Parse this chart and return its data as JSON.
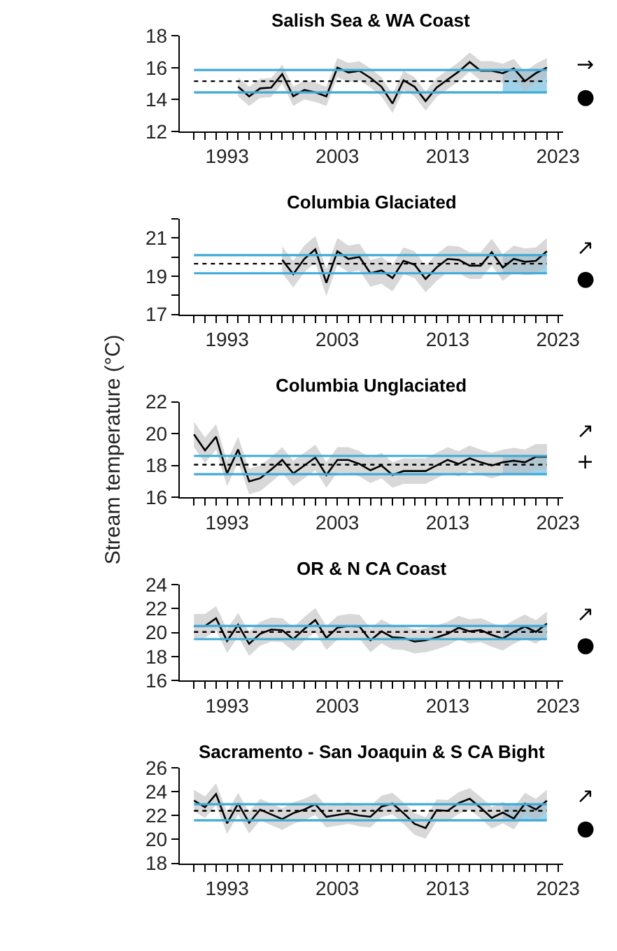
{
  "chart_data": [
    {
      "type": "line",
      "title": "Salish Sea & WA Coast",
      "annotations": [
        "→",
        "●"
      ],
      "x": [
        1994,
        1995,
        1996,
        1997,
        1998,
        1999,
        2000,
        2001,
        2002,
        2003,
        2004,
        2005,
        2006,
        2007,
        2008,
        2009,
        2010,
        2011,
        2012,
        2013,
        2014,
        2015,
        2016,
        2017,
        2018,
        2019,
        2020,
        2021,
        2022
      ],
      "series": [
        {
          "color": "#000000",
          "values": [
            14.8,
            14.2,
            14.7,
            14.75,
            15.6,
            14.2,
            14.6,
            14.45,
            14.2,
            16.0,
            15.7,
            15.8,
            15.35,
            14.8,
            13.75,
            15.2,
            14.8,
            13.9,
            14.75,
            15.25,
            15.75,
            16.35,
            15.8,
            15.8,
            15.65,
            15.95,
            15.15,
            15.65,
            16.0
          ],
          "lower": [
            14.2,
            13.6,
            14.1,
            14.15,
            15.0,
            13.6,
            14.0,
            13.85,
            13.6,
            15.4,
            15.1,
            15.2,
            14.75,
            14.2,
            13.15,
            14.6,
            14.2,
            13.3,
            14.15,
            14.65,
            15.15,
            15.75,
            15.2,
            15.2,
            15.05,
            15.35,
            14.55,
            15.05,
            15.4
          ],
          "upper": [
            15.4,
            14.8,
            15.3,
            15.35,
            16.2,
            14.8,
            15.2,
            15.05,
            14.8,
            16.6,
            16.3,
            16.4,
            15.95,
            15.4,
            14.35,
            15.8,
            15.4,
            14.5,
            15.35,
            15.85,
            16.35,
            16.95,
            16.4,
            16.4,
            16.25,
            16.55,
            15.75,
            16.25,
            16.6
          ]
        }
      ],
      "ref_lines": [
        {
          "axis": "y",
          "value": 15.15,
          "color": "#000000",
          "line_style": "dotted"
        },
        {
          "axis": "y",
          "value": 15.85,
          "color": "#3fa9d8",
          "line_style": "solid"
        },
        {
          "axis": "y",
          "value": 14.45,
          "color": "#3fa9d8",
          "line_style": "solid"
        }
      ],
      "bands": [
        {
          "axis": "x",
          "from": 2018,
          "to": 2022,
          "color": "#9fd3ea"
        }
      ],
      "ylim": [
        12,
        18
      ],
      "yticks": [
        12,
        14,
        16,
        18
      ],
      "xlim": [
        1988.7,
        2023.5
      ],
      "xticks": [
        {
          "value": 1990,
          "label": null
        },
        {
          "value": 1991,
          "label": null
        },
        {
          "value": 1992,
          "label": null
        },
        1993,
        {
          "value": 1994,
          "label": null
        },
        {
          "value": 1995,
          "label": null
        },
        {
          "value": 1996,
          "label": null
        },
        {
          "value": 1997,
          "label": null
        },
        {
          "value": 1998,
          "label": null
        },
        {
          "value": 1999,
          "label": null
        },
        {
          "value": 2000,
          "label": null
        },
        {
          "value": 2001,
          "label": null
        },
        {
          "value": 2002,
          "label": null
        },
        2003,
        {
          "value": 2004,
          "label": null
        },
        {
          "value": 2005,
          "label": null
        },
        {
          "value": 2006,
          "label": null
        },
        {
          "value": 2007,
          "label": null
        },
        {
          "value": 2008,
          "label": null
        },
        {
          "value": 2009,
          "label": null
        },
        {
          "value": 2010,
          "label": null
        },
        {
          "value": 2011,
          "label": null
        },
        {
          "value": 2012,
          "label": null
        },
        2013,
        {
          "value": 2014,
          "label": null
        },
        {
          "value": 2015,
          "label": null
        },
        {
          "value": 2016,
          "label": null
        },
        {
          "value": 2017,
          "label": null
        },
        {
          "value": 2018,
          "label": null
        },
        {
          "value": 2019,
          "label": null
        },
        {
          "value": 2020,
          "label": null
        },
        {
          "value": 2021,
          "label": null
        },
        {
          "value": 2022,
          "label": null
        },
        2023
      ]
    },
    {
      "type": "line",
      "title": "Columbia Glaciated",
      "annotations": [
        "↗",
        "●"
      ],
      "x": [
        1998,
        1999,
        2000,
        2001,
        2002,
        2003,
        2004,
        2005,
        2006,
        2007,
        2008,
        2009,
        2010,
        2011,
        2012,
        2013,
        2014,
        2015,
        2016,
        2017,
        2018,
        2019,
        2020,
        2021,
        2022
      ],
      "series": [
        {
          "color": "#000000",
          "values": [
            19.85,
            19.1,
            19.9,
            20.4,
            18.65,
            20.3,
            19.9,
            20.0,
            19.15,
            19.3,
            18.9,
            19.8,
            19.6,
            18.85,
            19.45,
            19.9,
            19.85,
            19.55,
            19.55,
            20.25,
            19.45,
            19.9,
            19.75,
            19.8,
            20.3
          ],
          "lower": [
            19.15,
            18.4,
            19.2,
            19.7,
            17.95,
            19.6,
            19.2,
            19.3,
            18.45,
            18.6,
            18.2,
            19.1,
            18.9,
            18.15,
            18.75,
            19.2,
            19.15,
            18.85,
            18.85,
            19.55,
            18.75,
            19.2,
            19.05,
            19.1,
            19.6
          ],
          "upper": [
            20.55,
            19.8,
            20.6,
            21.1,
            19.35,
            21.0,
            20.6,
            20.7,
            19.85,
            20.0,
            19.6,
            20.5,
            20.3,
            19.55,
            20.15,
            20.6,
            20.55,
            20.25,
            20.25,
            20.95,
            20.15,
            20.6,
            20.45,
            20.5,
            21.0
          ]
        }
      ],
      "ref_lines": [
        {
          "axis": "y",
          "value": 19.65,
          "color": "#000000",
          "line_style": "dotted"
        },
        {
          "axis": "y",
          "value": 20.1,
          "color": "#3fa9d8",
          "line_style": "solid"
        },
        {
          "axis": "y",
          "value": 19.15,
          "color": "#3fa9d8",
          "line_style": "solid"
        }
      ],
      "bands": [
        {
          "axis": "x",
          "from": 2018,
          "to": 2022,
          "color": "#9fd3ea"
        }
      ],
      "ylim": [
        17,
        22
      ],
      "yticks": [
        17,
        {
          "value": 18,
          "label": null
        },
        19,
        {
          "value": 20,
          "label": null
        },
        21,
        {
          "value": 22,
          "label": null
        }
      ],
      "xlim": [
        1988.7,
        2023.5
      ],
      "xticks": [
        {
          "value": 1990,
          "label": null
        },
        {
          "value": 1991,
          "label": null
        },
        {
          "value": 1992,
          "label": null
        },
        1993,
        {
          "value": 1994,
          "label": null
        },
        {
          "value": 1995,
          "label": null
        },
        {
          "value": 1996,
          "label": null
        },
        {
          "value": 1997,
          "label": null
        },
        {
          "value": 1998,
          "label": null
        },
        {
          "value": 1999,
          "label": null
        },
        {
          "value": 2000,
          "label": null
        },
        {
          "value": 2001,
          "label": null
        },
        {
          "value": 2002,
          "label": null
        },
        2003,
        {
          "value": 2004,
          "label": null
        },
        {
          "value": 2005,
          "label": null
        },
        {
          "value": 2006,
          "label": null
        },
        {
          "value": 2007,
          "label": null
        },
        {
          "value": 2008,
          "label": null
        },
        {
          "value": 2009,
          "label": null
        },
        {
          "value": 2010,
          "label": null
        },
        {
          "value": 2011,
          "label": null
        },
        {
          "value": 2012,
          "label": null
        },
        2013,
        {
          "value": 2014,
          "label": null
        },
        {
          "value": 2015,
          "label": null
        },
        {
          "value": 2016,
          "label": null
        },
        {
          "value": 2017,
          "label": null
        },
        {
          "value": 2018,
          "label": null
        },
        {
          "value": 2019,
          "label": null
        },
        {
          "value": 2020,
          "label": null
        },
        {
          "value": 2021,
          "label": null
        },
        {
          "value": 2022,
          "label": null
        },
        2023
      ]
    },
    {
      "type": "line",
      "title": "Columbia Unglaciated",
      "ylabel": "Stream temperature (°C)",
      "annotations": [
        "↗",
        "+"
      ],
      "x": [
        1990,
        1991,
        1992,
        1993,
        1994,
        1995,
        1996,
        1997,
        1998,
        1999,
        2000,
        2001,
        2002,
        2003,
        2004,
        2005,
        2006,
        2007,
        2008,
        2009,
        2010,
        2011,
        2012,
        2013,
        2014,
        2015,
        2016,
        2017,
        2018,
        2019,
        2020,
        2021,
        2022
      ],
      "series": [
        {
          "color": "#000000",
          "values": [
            19.95,
            18.95,
            19.8,
            17.5,
            19.0,
            17.0,
            17.2,
            17.75,
            18.35,
            17.5,
            18.0,
            18.5,
            17.4,
            18.35,
            18.35,
            18.1,
            17.7,
            18.0,
            17.4,
            17.65,
            17.65,
            17.65,
            18.0,
            18.35,
            18.1,
            18.45,
            18.2,
            18.0,
            18.2,
            18.3,
            18.2,
            18.55,
            18.55
          ],
          "lower": [
            19.15,
            18.15,
            19.0,
            16.7,
            18.2,
            16.2,
            16.4,
            16.95,
            17.55,
            16.7,
            17.2,
            17.7,
            16.6,
            17.55,
            17.55,
            17.3,
            16.9,
            17.2,
            16.6,
            16.85,
            16.85,
            16.85,
            17.2,
            17.55,
            17.3,
            17.65,
            17.4,
            17.2,
            17.4,
            17.5,
            17.4,
            17.75,
            17.75
          ],
          "upper": [
            20.75,
            19.75,
            20.6,
            18.3,
            19.8,
            17.8,
            18.0,
            18.55,
            19.15,
            18.3,
            18.8,
            19.3,
            18.2,
            19.15,
            19.15,
            18.9,
            18.5,
            18.8,
            18.2,
            18.45,
            18.45,
            18.45,
            18.8,
            19.15,
            18.9,
            19.25,
            19.0,
            18.8,
            19.0,
            19.1,
            19.0,
            19.35,
            19.35
          ]
        }
      ],
      "ref_lines": [
        {
          "axis": "y",
          "value": 18.05,
          "color": "#000000",
          "line_style": "dotted"
        },
        {
          "axis": "y",
          "value": 18.6,
          "color": "#3fa9d8",
          "line_style": "solid"
        },
        {
          "axis": "y",
          "value": 17.45,
          "color": "#3fa9d8",
          "line_style": "solid"
        }
      ],
      "bands": [
        {
          "axis": "x",
          "from": 2018,
          "to": 2022,
          "color": "#9fd3ea"
        }
      ],
      "ylim": [
        16,
        22
      ],
      "yticks": [
        16,
        18,
        20,
        22
      ],
      "xlim": [
        1988.7,
        2023.5
      ],
      "xticks": [
        {
          "value": 1990,
          "label": null
        },
        {
          "value": 1991,
          "label": null
        },
        {
          "value": 1992,
          "label": null
        },
        1993,
        {
          "value": 1994,
          "label": null
        },
        {
          "value": 1995,
          "label": null
        },
        {
          "value": 1996,
          "label": null
        },
        {
          "value": 1997,
          "label": null
        },
        {
          "value": 1998,
          "label": null
        },
        {
          "value": 1999,
          "label": null
        },
        {
          "value": 2000,
          "label": null
        },
        {
          "value": 2001,
          "label": null
        },
        {
          "value": 2002,
          "label": null
        },
        2003,
        {
          "value": 2004,
          "label": null
        },
        {
          "value": 2005,
          "label": null
        },
        {
          "value": 2006,
          "label": null
        },
        {
          "value": 2007,
          "label": null
        },
        {
          "value": 2008,
          "label": null
        },
        {
          "value": 2009,
          "label": null
        },
        {
          "value": 2010,
          "label": null
        },
        {
          "value": 2011,
          "label": null
        },
        {
          "value": 2012,
          "label": null
        },
        2013,
        {
          "value": 2014,
          "label": null
        },
        {
          "value": 2015,
          "label": null
        },
        {
          "value": 2016,
          "label": null
        },
        {
          "value": 2017,
          "label": null
        },
        {
          "value": 2018,
          "label": null
        },
        {
          "value": 2019,
          "label": null
        },
        {
          "value": 2020,
          "label": null
        },
        {
          "value": 2021,
          "label": null
        },
        {
          "value": 2022,
          "label": null
        },
        2023
      ]
    },
    {
      "type": "line",
      "title": "OR & N CA Coast",
      "annotations": [
        "↗",
        "●"
      ],
      "x": [
        1990,
        1991,
        1992,
        1993,
        1994,
        1995,
        1996,
        1997,
        1998,
        1999,
        2000,
        2001,
        2002,
        2003,
        2004,
        2005,
        2006,
        2007,
        2008,
        2009,
        2010,
        2011,
        2012,
        2013,
        2014,
        2015,
        2016,
        2017,
        2018,
        2019,
        2020,
        2021,
        2022
      ],
      "series": [
        {
          "color": "#000000",
          "values": [
            20.55,
            20.55,
            21.2,
            19.3,
            20.65,
            19.05,
            19.9,
            20.25,
            20.2,
            19.45,
            20.3,
            21.05,
            19.55,
            20.4,
            20.55,
            20.5,
            19.35,
            20.1,
            19.6,
            19.55,
            19.25,
            19.35,
            19.6,
            19.9,
            20.4,
            20.1,
            20.2,
            19.8,
            19.5,
            20.05,
            20.5,
            20.05,
            20.75
          ],
          "lower": [
            19.55,
            19.55,
            20.2,
            18.3,
            19.65,
            18.05,
            18.9,
            19.25,
            19.2,
            18.45,
            19.3,
            20.05,
            18.55,
            19.4,
            19.55,
            19.5,
            18.35,
            19.1,
            18.6,
            18.55,
            18.25,
            18.35,
            18.6,
            18.9,
            19.4,
            19.1,
            19.2,
            18.8,
            18.5,
            19.05,
            19.5,
            19.05,
            19.75
          ],
          "upper": [
            21.55,
            21.55,
            22.2,
            20.3,
            21.65,
            20.05,
            20.9,
            21.25,
            21.2,
            20.45,
            21.3,
            22.05,
            20.55,
            21.4,
            21.55,
            21.5,
            20.35,
            21.1,
            20.6,
            20.55,
            20.25,
            20.35,
            20.6,
            20.9,
            21.4,
            21.1,
            21.2,
            20.8,
            20.5,
            21.05,
            21.5,
            21.05,
            21.75
          ]
        }
      ],
      "ref_lines": [
        {
          "axis": "y",
          "value": 20.05,
          "color": "#000000",
          "line_style": "dotted"
        },
        {
          "axis": "y",
          "value": 20.55,
          "color": "#3fa9d8",
          "line_style": "solid"
        },
        {
          "axis": "y",
          "value": 19.45,
          "color": "#3fa9d8",
          "line_style": "solid"
        }
      ],
      "bands": [
        {
          "axis": "x",
          "from": 2018,
          "to": 2022,
          "color": "#9fd3ea"
        }
      ],
      "ylim": [
        16,
        24
      ],
      "yticks": [
        16,
        18,
        20,
        22,
        24
      ],
      "xlim": [
        1988.7,
        2023.5
      ],
      "xticks": [
        {
          "value": 1990,
          "label": null
        },
        {
          "value": 1991,
          "label": null
        },
        {
          "value": 1992,
          "label": null
        },
        1993,
        {
          "value": 1994,
          "label": null
        },
        {
          "value": 1995,
          "label": null
        },
        {
          "value": 1996,
          "label": null
        },
        {
          "value": 1997,
          "label": null
        },
        {
          "value": 1998,
          "label": null
        },
        {
          "value": 1999,
          "label": null
        },
        {
          "value": 2000,
          "label": null
        },
        {
          "value": 2001,
          "label": null
        },
        {
          "value": 2002,
          "label": null
        },
        2003,
        {
          "value": 2004,
          "label": null
        },
        {
          "value": 2005,
          "label": null
        },
        {
          "value": 2006,
          "label": null
        },
        {
          "value": 2007,
          "label": null
        },
        {
          "value": 2008,
          "label": null
        },
        {
          "value": 2009,
          "label": null
        },
        {
          "value": 2010,
          "label": null
        },
        {
          "value": 2011,
          "label": null
        },
        {
          "value": 2012,
          "label": null
        },
        2013,
        {
          "value": 2014,
          "label": null
        },
        {
          "value": 2015,
          "label": null
        },
        {
          "value": 2016,
          "label": null
        },
        {
          "value": 2017,
          "label": null
        },
        {
          "value": 2018,
          "label": null
        },
        {
          "value": 2019,
          "label": null
        },
        {
          "value": 2020,
          "label": null
        },
        {
          "value": 2021,
          "label": null
        },
        {
          "value": 2022,
          "label": null
        },
        2023
      ]
    },
    {
      "type": "line",
      "title": "Sacramento - San Joaquin & S CA Bight",
      "annotations": [
        "↗",
        "●"
      ],
      "x": [
        1990,
        1991,
        1992,
        1993,
        1994,
        1995,
        1996,
        1997,
        1998,
        1999,
        2000,
        2001,
        2002,
        2003,
        2004,
        2005,
        2006,
        2007,
        2008,
        2009,
        2010,
        2011,
        2012,
        2013,
        2014,
        2015,
        2016,
        2017,
        2018,
        2019,
        2020,
        2021,
        2022
      ],
      "series": [
        {
          "color": "#000000",
          "values": [
            23.25,
            22.7,
            23.8,
            21.35,
            23.0,
            21.4,
            22.5,
            22.1,
            21.7,
            22.2,
            22.5,
            22.95,
            21.9,
            22.05,
            22.2,
            22.0,
            21.9,
            22.75,
            23.0,
            22.2,
            21.3,
            20.95,
            22.45,
            22.4,
            23.05,
            23.4,
            22.65,
            21.8,
            22.25,
            21.75,
            23.0,
            22.5,
            23.25
          ],
          "lower": [
            22.35,
            21.8,
            22.9,
            20.45,
            22.1,
            20.5,
            21.6,
            21.2,
            20.8,
            21.3,
            21.6,
            22.05,
            21.0,
            21.15,
            21.3,
            21.1,
            21.0,
            21.85,
            22.1,
            21.3,
            20.4,
            20.05,
            21.55,
            21.5,
            22.15,
            22.5,
            21.75,
            20.9,
            21.35,
            20.85,
            22.1,
            21.6,
            22.35
          ],
          "upper": [
            24.15,
            23.6,
            24.7,
            22.25,
            23.9,
            22.3,
            23.4,
            23.0,
            22.6,
            23.1,
            23.4,
            23.85,
            22.8,
            22.95,
            23.1,
            22.9,
            22.8,
            23.65,
            23.9,
            23.1,
            22.2,
            21.85,
            23.35,
            23.3,
            23.95,
            24.3,
            23.55,
            22.7,
            23.15,
            22.65,
            23.9,
            23.4,
            24.15
          ]
        }
      ],
      "ref_lines": [
        {
          "axis": "y",
          "value": 22.4,
          "color": "#000000",
          "line_style": "dotted"
        },
        {
          "axis": "y",
          "value": 22.95,
          "color": "#3fa9d8",
          "line_style": "solid"
        },
        {
          "axis": "y",
          "value": 21.6,
          "color": "#3fa9d8",
          "line_style": "solid"
        }
      ],
      "bands": [
        {
          "axis": "x",
          "from": 2018,
          "to": 2022,
          "color": "#9fd3ea"
        }
      ],
      "ylim": [
        18,
        26
      ],
      "yticks": [
        18,
        20,
        22,
        24,
        26
      ],
      "xlim": [
        1988.7,
        2023.5
      ],
      "xticks": [
        {
          "value": 1990,
          "label": null
        },
        {
          "value": 1991,
          "label": null
        },
        {
          "value": 1992,
          "label": null
        },
        1993,
        {
          "value": 1994,
          "label": null
        },
        {
          "value": 1995,
          "label": null
        },
        {
          "value": 1996,
          "label": null
        },
        {
          "value": 1997,
          "label": null
        },
        {
          "value": 1998,
          "label": null
        },
        {
          "value": 1999,
          "label": null
        },
        {
          "value": 2000,
          "label": null
        },
        {
          "value": 2001,
          "label": null
        },
        {
          "value": 2002,
          "label": null
        },
        2003,
        {
          "value": 2004,
          "label": null
        },
        {
          "value": 2005,
          "label": null
        },
        {
          "value": 2006,
          "label": null
        },
        {
          "value": 2007,
          "label": null
        },
        {
          "value": 2008,
          "label": null
        },
        {
          "value": 2009,
          "label": null
        },
        {
          "value": 2010,
          "label": null
        },
        {
          "value": 2011,
          "label": null
        },
        {
          "value": 2012,
          "label": null
        },
        2013,
        {
          "value": 2014,
          "label": null
        },
        {
          "value": 2015,
          "label": null
        },
        {
          "value": 2016,
          "label": null
        },
        {
          "value": 2017,
          "label": null
        },
        {
          "value": 2018,
          "label": null
        },
        {
          "value": 2019,
          "label": null
        },
        {
          "value": 2020,
          "label": null
        },
        {
          "value": 2021,
          "label": null
        },
        {
          "value": 2022,
          "label": null
        },
        2023
      ]
    }
  ]
}
